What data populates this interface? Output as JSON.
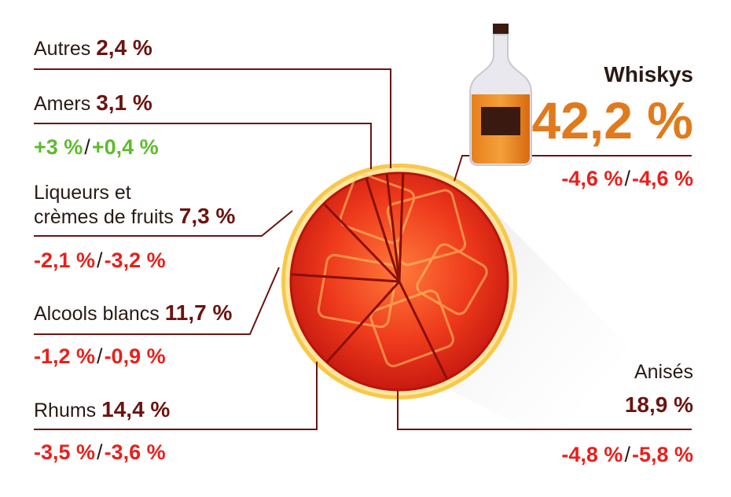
{
  "colors": {
    "negative": "#e8201c",
    "positive": "#5dbb2e",
    "value": "#6b1410",
    "whisky_value": "#e07a1c",
    "leader": "#6b1410"
  },
  "chart_data": {
    "type": "pie",
    "slices": [
      {
        "name": "Whiskys",
        "value": 42.2,
        "value_label": "42,2 %",
        "change_a": "-4,6 %",
        "change_b": "-4,6 %"
      },
      {
        "name": "Anisés",
        "value": 18.9,
        "value_label": "18,9 %",
        "change_a": "-4,8 %",
        "change_b": "-5,8 %"
      },
      {
        "name": "Rhums",
        "value": 14.4,
        "value_label": "14,4 %",
        "change_a": "-3,5 %",
        "change_b": "-3,6 %"
      },
      {
        "name": "Alcools blancs",
        "value": 11.7,
        "value_label": "11,7 %",
        "change_a": "-1,2 %",
        "change_b": "-0,9 %"
      },
      {
        "name": "Liqueurs et crèmes de fruits",
        "name_line1": "Liqueurs et",
        "name_line2": "crèmes de fruits",
        "value": 7.3,
        "value_label": "7,3 %",
        "change_a": "-2,1 %",
        "change_b": "-3,2 %"
      },
      {
        "name": "Amers",
        "value": 3.1,
        "value_label": "3,1 %",
        "change_a": "+3 %",
        "change_b": "+0,4 %"
      },
      {
        "name": "Autres",
        "value": 2.4,
        "value_label": "2,4 %"
      }
    ],
    "change_separator": "/"
  }
}
